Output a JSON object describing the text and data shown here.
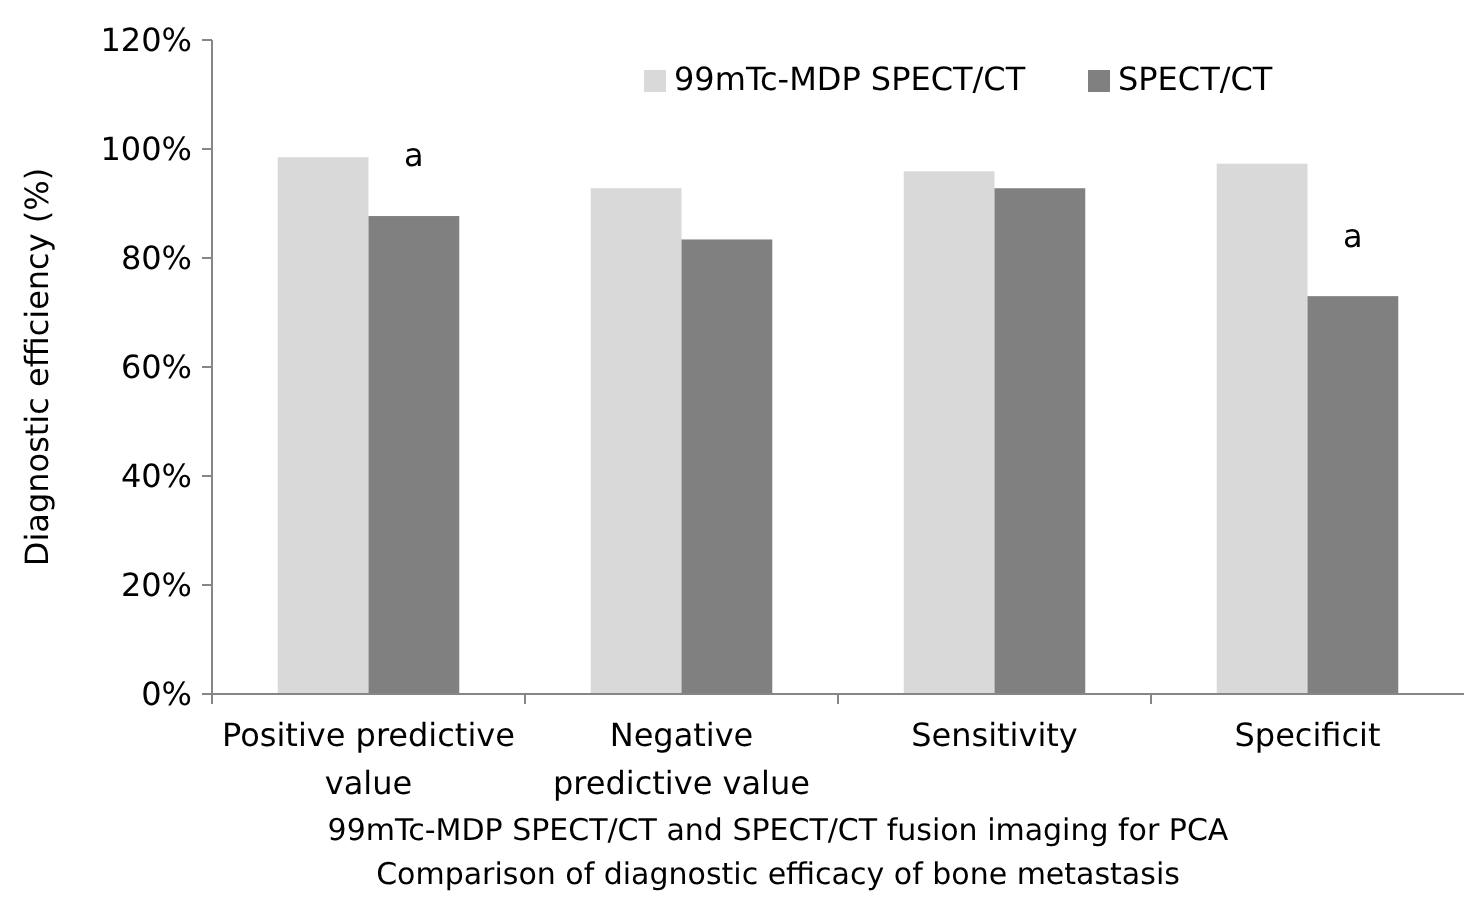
{
  "chart_data": {
    "type": "bar",
    "xlabel": "99mTc-MDP SPECT/CT and SPECT/CT fusion imaging for PCA\nComparison of diagnostic efficacy of bone metastasis",
    "ylabel": "Diagnostic efficiency (%)",
    "categories": [
      "Positive predictive\nvalue",
      "Negative\npredictive value",
      "Sensitivity",
      "Specificit"
    ],
    "series": [
      {
        "name": "99mTc-MDP SPECT/CT",
        "color": "#d9d9d9",
        "values": [
          98.5,
          92.8,
          95.9,
          97.3
        ]
      },
      {
        "name": "SPECT/CT",
        "color": "#808080",
        "values": [
          87.7,
          83.4,
          92.8,
          73
        ]
      }
    ],
    "ylim": [
      0,
      120
    ],
    "yticks": [
      {
        "value": 0,
        "label": "0%"
      },
      {
        "value": 20,
        "label": "20%"
      },
      {
        "value": 40,
        "label": "40%"
      },
      {
        "value": 60,
        "label": "60%"
      },
      {
        "value": 80,
        "label": "80%"
      },
      {
        "value": 100,
        "label": "100%"
      },
      {
        "value": 120,
        "label": "120%"
      }
    ],
    "legend": "top right",
    "annotations": [
      {
        "text": "a",
        "x": "Positive predictive\nvalue",
        "y": 99
      },
      {
        "text": "a",
        "x": "Specificit",
        "y": 84
      }
    ]
  }
}
